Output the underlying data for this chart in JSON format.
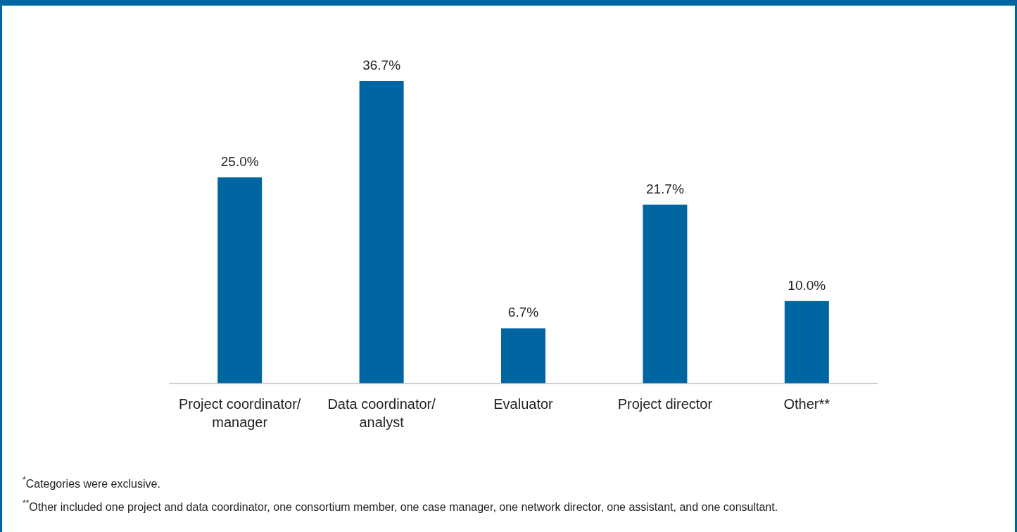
{
  "chart_data": {
    "type": "bar",
    "categories": [
      "Project coordinator/ manager",
      "Data coordinator/ analyst",
      "Evaluator",
      "Project director",
      "Other**"
    ],
    "values": [
      25.0,
      36.7,
      6.7,
      21.7,
      10.0
    ],
    "value_labels": [
      "25.0%",
      "36.7%",
      "6.7%",
      "21.7%",
      "10.0%"
    ],
    "color": "#0066a1",
    "annotations": [
      "$^{*}$Categories were exclusive.",
      "$^{**}$Other included one project and data coordinator, one consortium member, one case manager, one network director, one assistant, and one consultant."
    ]
  }
}
